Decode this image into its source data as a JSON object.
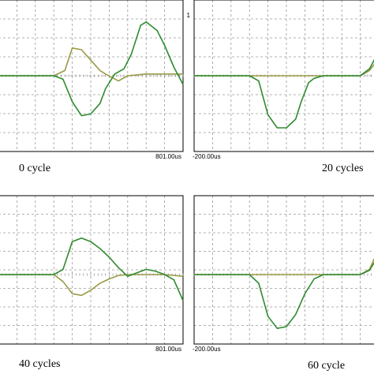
{
  "colors": {
    "series_a": "#2e8b2e",
    "series_b": "#9a9a45",
    "grid": "#9a9a9a",
    "frame": "#000000"
  },
  "chart_data": [
    {
      "type": "line",
      "caption": "0 cycle",
      "x_tick_right": "801.00us",
      "y_tick_top": "",
      "grid": true,
      "series": [
        {
          "x": [
            0,
            0.18,
            0.3,
            0.35,
            0.4,
            0.45,
            0.5,
            0.55,
            0.58,
            0.63,
            0.68,
            0.72,
            0.77,
            0.8,
            0.86,
            0.9,
            0.95,
            1.0
          ],
          "y": [
            0,
            0,
            0,
            -0.04,
            -0.3,
            -0.46,
            -0.44,
            -0.32,
            -0.15,
            0.02,
            0.08,
            0.25,
            0.58,
            0.62,
            0.52,
            0.35,
            0.1,
            -0.1
          ]
        },
        {
          "x": [
            0,
            0.18,
            0.3,
            0.36,
            0.4,
            0.45,
            0.5,
            0.55,
            0.58,
            0.65,
            0.7,
            0.8,
            0.95,
            1.0
          ],
          "y": [
            0,
            0,
            0,
            0.06,
            0.32,
            0.3,
            0.18,
            0.06,
            0.02,
            -0.06,
            0,
            0.02,
            0.02,
            0.02
          ]
        }
      ]
    },
    {
      "type": "line",
      "caption": "20 cycles",
      "x_tick_left": "-200.00us",
      "y_tick_top": "1",
      "grid": true,
      "series": [
        {
          "x": [
            0,
            0.3,
            0.35,
            0.4,
            0.45,
            0.5,
            0.55,
            0.58,
            0.62,
            0.65,
            0.7,
            0.8,
            0.9,
            0.95,
            1.0
          ],
          "y": [
            0,
            0,
            -0.06,
            -0.45,
            -0.6,
            -0.6,
            -0.5,
            -0.3,
            -0.08,
            -0.03,
            0,
            0,
            0,
            0.08,
            0.28
          ]
        },
        {
          "x": [
            0,
            0.3,
            0.4,
            0.5,
            0.6,
            0.7,
            0.8,
            0.9,
            0.95,
            1.0
          ],
          "y": [
            0,
            0,
            0,
            0,
            0,
            0,
            0,
            0,
            0.06,
            0.2
          ]
        }
      ]
    },
    {
      "type": "line",
      "caption": "40 cycles",
      "x_tick_right": "801.00us",
      "grid": true,
      "series": [
        {
          "x": [
            0,
            0.3,
            0.35,
            0.4,
            0.45,
            0.5,
            0.55,
            0.6,
            0.65,
            0.7,
            0.75,
            0.8,
            0.85,
            0.9,
            0.95,
            1.0
          ],
          "y": [
            0,
            0,
            0.06,
            0.38,
            0.42,
            0.38,
            0.3,
            0.2,
            0.08,
            -0.02,
            0.02,
            0.06,
            0.04,
            0,
            -0.06,
            -0.3
          ]
        },
        {
          "x": [
            0,
            0.3,
            0.35,
            0.4,
            0.45,
            0.5,
            0.55,
            0.6,
            0.65,
            0.7,
            0.8,
            0.9,
            1.0
          ],
          "y": [
            0,
            0,
            -0.08,
            -0.22,
            -0.24,
            -0.18,
            -0.1,
            -0.05,
            -0.01,
            0,
            0,
            0,
            -0.02
          ]
        }
      ]
    },
    {
      "type": "line",
      "caption": "60 cycle",
      "x_tick_left": "-200.00us",
      "grid": true,
      "series": [
        {
          "x": [
            0,
            0.3,
            0.35,
            0.4,
            0.45,
            0.5,
            0.55,
            0.6,
            0.65,
            0.7,
            0.8,
            0.9,
            0.95,
            1.0
          ],
          "y": [
            0,
            0,
            -0.1,
            -0.48,
            -0.62,
            -0.6,
            -0.46,
            -0.22,
            -0.05,
            0,
            0,
            0,
            0.05,
            0.22
          ]
        },
        {
          "x": [
            0,
            0.3,
            0.4,
            0.5,
            0.6,
            0.7,
            0.8,
            0.9,
            0.95,
            1.0
          ],
          "y": [
            0,
            0,
            0,
            0,
            0,
            0,
            0,
            0,
            0.06,
            0.3
          ]
        }
      ]
    }
  ]
}
